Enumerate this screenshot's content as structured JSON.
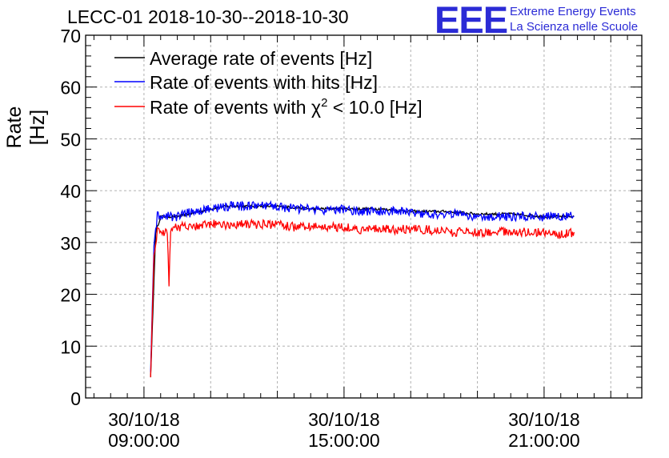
{
  "chart_data": {
    "type": "line",
    "title": "LECC-01 2018-10-30--2018-10-30",
    "ylabel": "Rate [Hz]",
    "xlabel": "",
    "ylim": [
      0,
      70
    ],
    "yticks": [
      0,
      10,
      20,
      30,
      40,
      50,
      60,
      70
    ],
    "x_tick_labels": [
      {
        "date": "30/10/18",
        "time": "09:00:00"
      },
      {
        "date": "30/10/18",
        "time": "15:00:00"
      },
      {
        "date": "30/10/18",
        "time": "21:00:00"
      }
    ],
    "grid": true,
    "legend_position": "top-left",
    "series": [
      {
        "name": "Average rate of events [Hz]",
        "color": "#000000",
        "points": [
          [
            9.2,
            4
          ],
          [
            9.35,
            32
          ],
          [
            9.5,
            35
          ],
          [
            10,
            35
          ],
          [
            11,
            36.5
          ],
          [
            11.5,
            37
          ],
          [
            12,
            37
          ],
          [
            13,
            37
          ],
          [
            14,
            36.5
          ],
          [
            15,
            36.5
          ],
          [
            16,
            36.5
          ],
          [
            17,
            36
          ],
          [
            18,
            36
          ],
          [
            19,
            35.5
          ],
          [
            20,
            35.5
          ],
          [
            21,
            35
          ],
          [
            21.9,
            35
          ]
        ]
      },
      {
        "name": "Rate of events with hits [Hz]",
        "color": "#0000ff",
        "points": [
          [
            9.2,
            5
          ],
          [
            9.3,
            30
          ],
          [
            9.4,
            35
          ],
          [
            9.6,
            35
          ],
          [
            10,
            35
          ],
          [
            10.5,
            36
          ],
          [
            11,
            36.5
          ],
          [
            11.5,
            37
          ],
          [
            12,
            37
          ],
          [
            12.5,
            37
          ],
          [
            13,
            37
          ],
          [
            13.5,
            36.5
          ],
          [
            14,
            36.5
          ],
          [
            14.5,
            36
          ],
          [
            15,
            36.5
          ],
          [
            15.5,
            36
          ],
          [
            16,
            36
          ],
          [
            16.5,
            36
          ],
          [
            17,
            36
          ],
          [
            17.5,
            35.5
          ],
          [
            18,
            35.5
          ],
          [
            18.5,
            35.5
          ],
          [
            19,
            35
          ],
          [
            19.5,
            35
          ],
          [
            20,
            35
          ],
          [
            20.5,
            35
          ],
          [
            21,
            35
          ],
          [
            21.5,
            35
          ],
          [
            21.9,
            35
          ]
        ]
      },
      {
        "name": "Rate of events with χ² < 10.0 [Hz]",
        "color": "#ff0000",
        "points": [
          [
            9.2,
            4
          ],
          [
            9.3,
            28
          ],
          [
            9.4,
            32
          ],
          [
            9.6,
            32
          ],
          [
            9.7,
            32.5
          ],
          [
            9.75,
            21
          ],
          [
            9.8,
            33
          ],
          [
            10,
            33
          ],
          [
            10.5,
            33
          ],
          [
            11,
            33.5
          ],
          [
            11.5,
            33.5
          ],
          [
            12,
            33.5
          ],
          [
            12.5,
            33.5
          ],
          [
            13,
            33.5
          ],
          [
            13.5,
            33
          ],
          [
            14,
            33
          ],
          [
            14.5,
            33
          ],
          [
            15,
            33
          ],
          [
            15.5,
            32.5
          ],
          [
            16,
            32.5
          ],
          [
            16.5,
            32.5
          ],
          [
            17,
            32.5
          ],
          [
            17.5,
            32.5
          ],
          [
            18,
            32
          ],
          [
            18.5,
            32
          ],
          [
            19,
            32
          ],
          [
            19.5,
            32
          ],
          [
            20,
            32
          ],
          [
            20.5,
            32
          ],
          [
            21,
            32
          ],
          [
            21.5,
            31.5
          ],
          [
            21.9,
            32
          ]
        ]
      }
    ]
  },
  "logo": {
    "mark": "EEE",
    "line1": "Extreme Energy Events",
    "line2": "La Scienza nelle Scuole"
  },
  "legend": {
    "entry1": "Average rate of events [Hz]",
    "entry2": "Rate of events with hits [Hz]",
    "entry3_prefix": "Rate of events with ",
    "entry3_chi": "χ",
    "entry3_sup": "2",
    "entry3_suffix": " < 10.0 [Hz]"
  }
}
